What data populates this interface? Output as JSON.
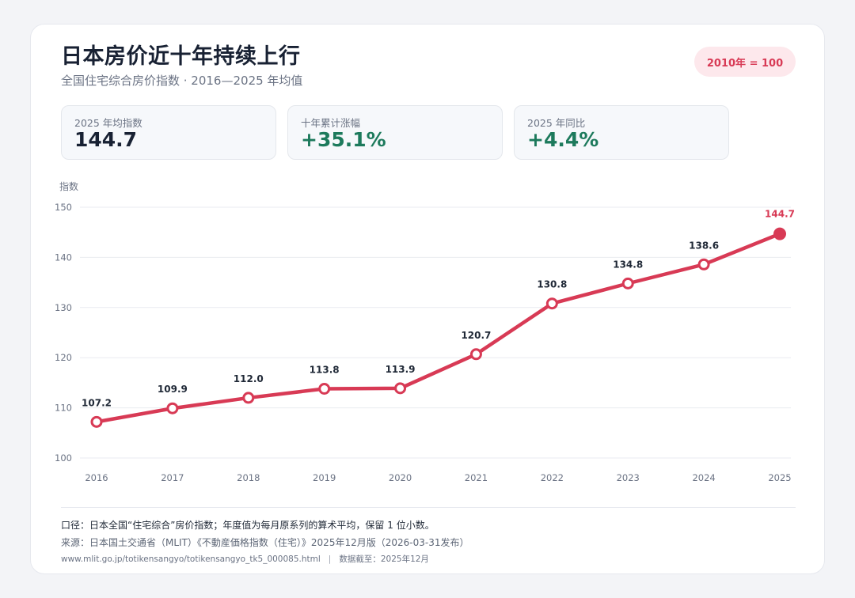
{
  "header": {
    "title": "日本房价近十年持续上行",
    "subtitle": "全国住宅综合房价指数 · 2016—2025 年均值",
    "badge": "2010年 = 100"
  },
  "kpis": [
    {
      "label": "2025 年均指数",
      "value": "144.7",
      "positive": false
    },
    {
      "label": "十年累计涨幅",
      "value": "+35.1%",
      "positive": true
    },
    {
      "label": "2025 年同比",
      "value": "+4.4%",
      "positive": true
    }
  ],
  "colors": {
    "line": "#d83a55",
    "positive": "#1d7a5c",
    "grid": "#e9ebf0",
    "tick": "#6b7384",
    "label": "#1f2836"
  },
  "chart_data": {
    "type": "line",
    "ylabel": "指数",
    "xlabel": "",
    "ylim": [
      100,
      150
    ],
    "yticks": [
      100,
      110,
      120,
      130,
      140,
      150
    ],
    "grid": true,
    "categories": [
      "2016",
      "2017",
      "2018",
      "2019",
      "2020",
      "2021",
      "2022",
      "2023",
      "2024",
      "2025"
    ],
    "values": [
      107.2,
      109.9,
      112.0,
      113.8,
      113.9,
      120.7,
      130.8,
      134.8,
      138.6,
      144.7
    ],
    "data_labels": [
      "107.2",
      "109.9",
      "112.0",
      "113.8",
      "113.9",
      "120.7",
      "130.8",
      "134.8",
      "138.6",
      "144.7"
    ],
    "highlight_last": true
  },
  "footer": {
    "note": "口径：日本全国“住宅综合”房价指数；年度值为每月原系列的算术平均，保留 1 位小数。",
    "source": "来源：日本国土交通省（MLIT）《不動産価格指数（住宅）》2025年12月版（2026-03-31发布）",
    "url": "www.mlit.go.jp/totikensangyo/totikensangyo_tk5_000085.html",
    "cutoff": "数据截至：2025年12月"
  }
}
